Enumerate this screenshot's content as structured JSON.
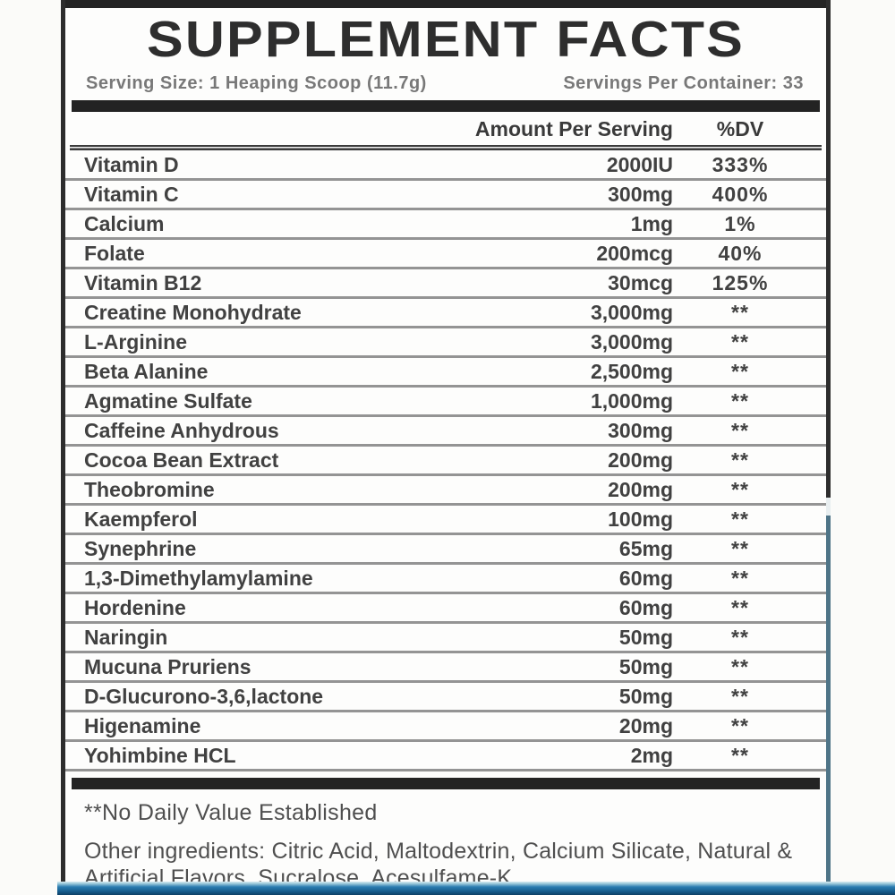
{
  "label": {
    "title": "SUPPLEMENT FACTS",
    "serving_size": "Serving Size: 1 Heaping Scoop (11.7g)",
    "servings_per_container": "Servings Per Container: 33",
    "columns": {
      "amount": "Amount Per Serving",
      "dv": "%DV"
    },
    "rows": [
      {
        "name": "Vitamin D",
        "amount": "2000IU",
        "dv": "333%"
      },
      {
        "name": "Vitamin C",
        "amount": "300mg",
        "dv": "400%"
      },
      {
        "name": "Calcium",
        "amount": "1mg",
        "dv": "1%"
      },
      {
        "name": "Folate",
        "amount": "200mcg",
        "dv": "40%"
      },
      {
        "name": "Vitamin B12",
        "amount": "30mcg",
        "dv": "125%"
      },
      {
        "name": "Creatine Monohydrate",
        "amount": "3,000mg",
        "dv": "**"
      },
      {
        "name": "L-Arginine",
        "amount": "3,000mg",
        "dv": "**"
      },
      {
        "name": "Beta Alanine",
        "amount": "2,500mg",
        "dv": "**"
      },
      {
        "name": "Agmatine Sulfate",
        "amount": "1,000mg",
        "dv": "**"
      },
      {
        "name": "Caffeine Anhydrous",
        "amount": "300mg",
        "dv": "**"
      },
      {
        "name": "Cocoa Bean Extract",
        "amount": "200mg",
        "dv": "**"
      },
      {
        "name": "Theobromine",
        "amount": "200mg",
        "dv": "**"
      },
      {
        "name": "Kaempferol",
        "amount": "100mg",
        "dv": "**"
      },
      {
        "name": "Synephrine",
        "amount": "65mg",
        "dv": "**"
      },
      {
        "name": "1,3-Dimethylamylamine",
        "amount": "60mg",
        "dv": "**"
      },
      {
        "name": "Hordenine",
        "amount": "60mg",
        "dv": "**"
      },
      {
        "name": "Naringin",
        "amount": "50mg",
        "dv": "**"
      },
      {
        "name": "Mucuna Pruriens",
        "amount": "50mg",
        "dv": "**"
      },
      {
        "name": "D-Glucurono-3,6,lactone",
        "amount": "50mg",
        "dv": "**"
      },
      {
        "name": "Higenamine",
        "amount": "20mg",
        "dv": "**"
      },
      {
        "name": "Yohimbine HCL",
        "amount": "2mg",
        "dv": "**"
      }
    ],
    "footnote": "**No Daily Value Established",
    "other_ingredients": "Other ingredients: Citric Acid, Maltodextrin, Calcium Silicate, Natural & Artificial Flavors, Sucralose, Acesulfame-K.",
    "colors": {
      "panel_border": "#2d2d2d",
      "right_border_lower": "#4e7487",
      "row_separator": "#949494",
      "cap_band_blue": "#155a8a",
      "cap_band_highlight": "#d9edf2",
      "text_dark": "#414141",
      "text_gray": "#4f4f4f"
    }
  }
}
